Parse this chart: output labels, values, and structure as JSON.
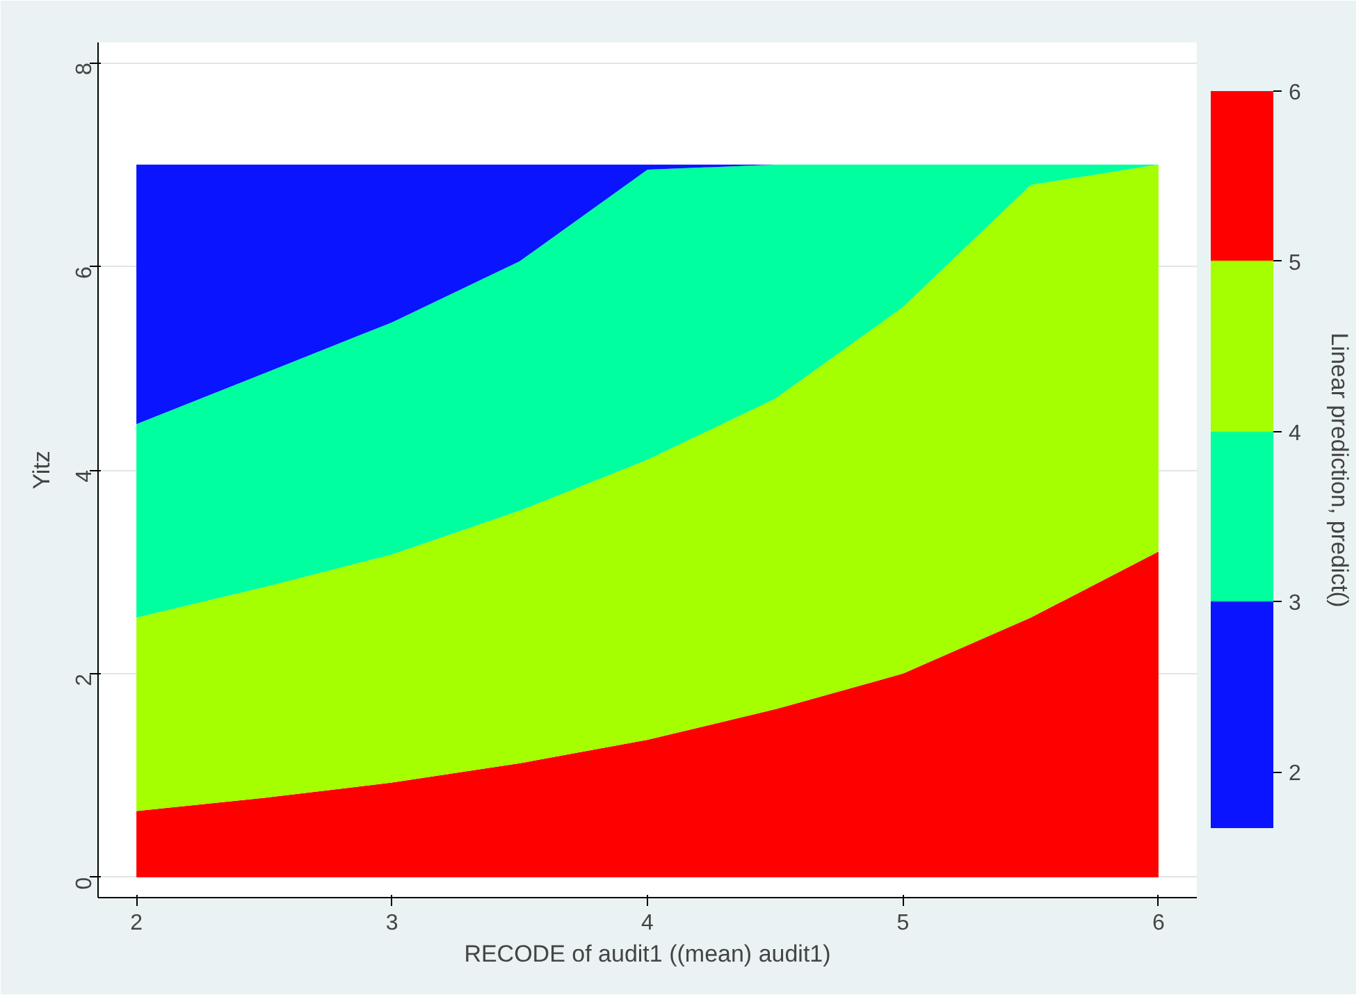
{
  "chart_data": {
    "type": "area",
    "stacked": true,
    "xlabel": "RECODE of audit1 ((mean) audit1)",
    "ylabel": "Yitz",
    "clabel": "Linear prediction, predict()",
    "clim": [
      1.67,
      6
    ],
    "cticks": [
      2,
      3,
      4,
      5,
      6
    ],
    "x": [
      2,
      2.5,
      3,
      3.5,
      4,
      4.5,
      5,
      5.5,
      6
    ],
    "series": [
      {
        "color": "#ff0000",
        "values": [
          0.65,
          0.78,
          0.93,
          1.12,
          1.35,
          1.65,
          2.0,
          2.55,
          3.2
        ]
      },
      {
        "color": "#a5ff00",
        "values": [
          1.9,
          2.07,
          2.24,
          2.48,
          2.75,
          3.05,
          3.6,
          4.25,
          3.8
        ]
      },
      {
        "color": "#00ff9f",
        "values": [
          1.9,
          2.1,
          2.28,
          2.45,
          2.85,
          2.3,
          1.4,
          0.2,
          0
        ]
      },
      {
        "color": "#0a14ff",
        "values": [
          2.55,
          2.05,
          1.55,
          0.95,
          0.05,
          0,
          0,
          0,
          0
        ]
      }
    ],
    "xlim": [
      1.85,
      6.15
    ],
    "ylim": [
      -0.2,
      8.2
    ],
    "xticks": [
      2,
      3,
      4,
      5,
      6
    ],
    "yticks": [
      0,
      2,
      4,
      6,
      8
    ],
    "grid": "y"
  }
}
